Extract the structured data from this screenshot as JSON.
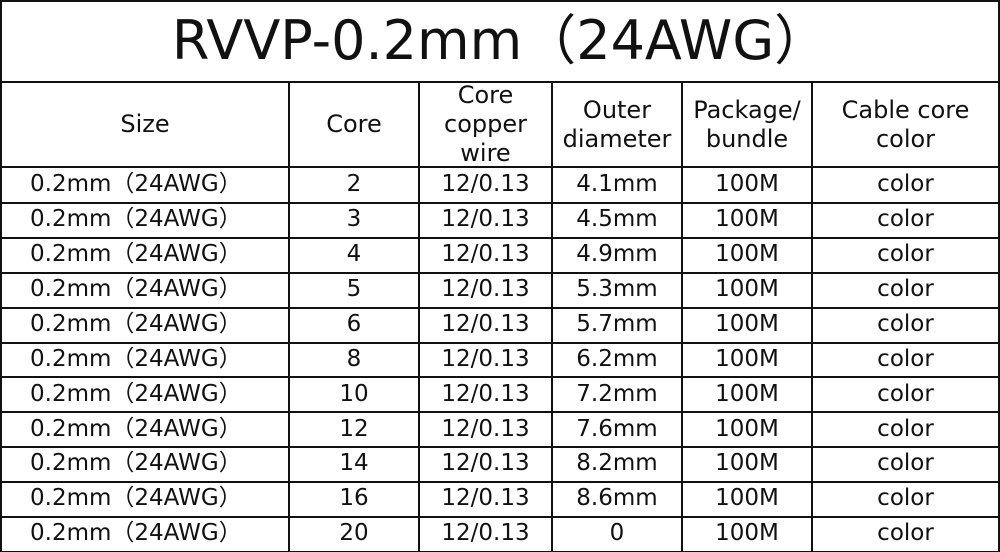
{
  "title": "RVVP-0.2mm（24AWG）",
  "table": {
    "header": [
      "Size",
      "Core",
      "Core copper wire",
      "Outer diameter",
      "Package/ bundle",
      "Cable core color"
    ],
    "rows": [
      [
        "0.2mm（24AWG）",
        "2",
        "12/0.13",
        "4.1mm",
        "100M",
        "color"
      ],
      [
        "0.2mm（24AWG）",
        "3",
        "12/0.13",
        "4.5mm",
        "100M",
        "color"
      ],
      [
        "0.2mm（24AWG）",
        "4",
        "12/0.13",
        "4.9mm",
        "100M",
        "color"
      ],
      [
        "0.2mm（24AWG）",
        "5",
        "12/0.13",
        "5.3mm",
        "100M",
        "color"
      ],
      [
        "0.2mm（24AWG）",
        "6",
        "12/0.13",
        "5.7mm",
        "100M",
        "color"
      ],
      [
        "0.2mm（24AWG）",
        "8",
        "12/0.13",
        "6.2mm",
        "100M",
        "color"
      ],
      [
        "0.2mm（24AWG）",
        "10",
        "12/0.13",
        "7.2mm",
        "100M",
        "color"
      ],
      [
        "0.2mm（24AWG）",
        "12",
        "12/0.13",
        "7.6mm",
        "100M",
        "color"
      ],
      [
        "0.2mm（24AWG）",
        "14",
        "12/0.13",
        "8.2mm",
        "100M",
        "color"
      ],
      [
        "0.2mm（24AWG）",
        "16",
        "12/0.13",
        "8.6mm",
        "100M",
        "color"
      ],
      [
        "0.2mm（24AWG）",
        "20",
        "12/0.13",
        "0",
        "100M",
        "color"
      ]
    ]
  }
}
